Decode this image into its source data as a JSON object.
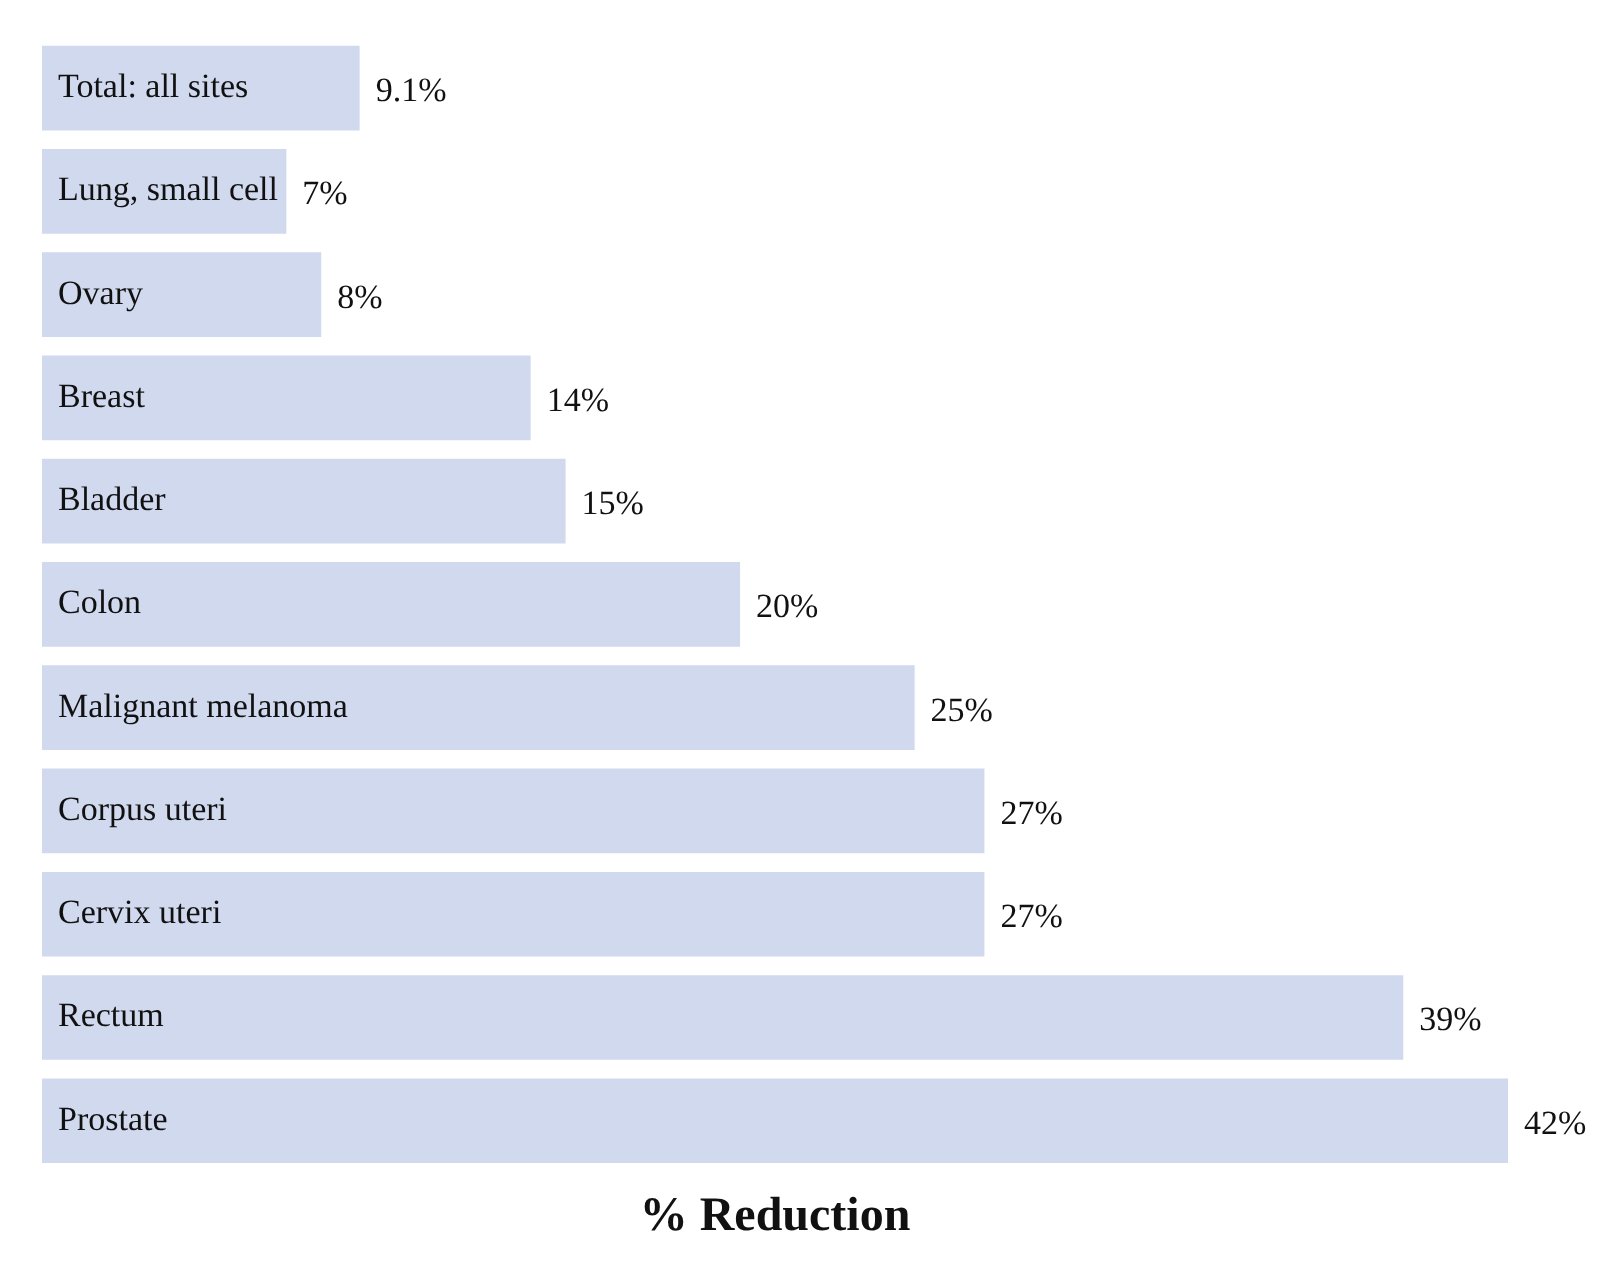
{
  "chart_data": {
    "type": "bar",
    "orientation": "horizontal",
    "xlabel": "% Reduction",
    "categories": [
      "Total: all sites",
      "Lung, small cell",
      "Ovary",
      "Breast",
      "Bladder",
      "Colon",
      "Malignant melanoma",
      "Corpus uteri",
      "Cervix uteri",
      "Rectum",
      "Prostate"
    ],
    "values": [
      9.1,
      7,
      8,
      14,
      15,
      20,
      25,
      27,
      27,
      39,
      42
    ],
    "value_labels": [
      "9.1%",
      "7%",
      "8%",
      "14%",
      "15%",
      "20%",
      "25%",
      "27%",
      "27%",
      "39%",
      "42%"
    ],
    "color": "#d0d9ee",
    "xlim": [
      0,
      42
    ],
    "tick_labels": "y",
    "grid": false,
    "legend": false
  }
}
